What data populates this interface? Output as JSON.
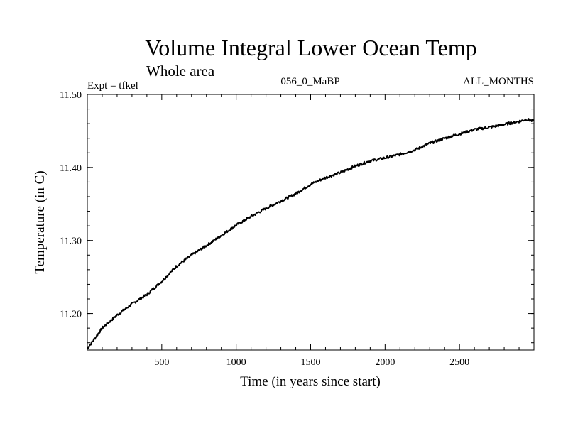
{
  "chart_data": {
    "type": "line",
    "title": "Volume Integral Lower Ocean Temp",
    "subtitle": "Whole area",
    "header_left": "Expt = tfkel",
    "header_center": "056_0_MaBP",
    "header_right": "ALL_MONTHS",
    "xlabel": "Time (in years since start)",
    "ylabel": "Temperature (in C)",
    "xlim": [
      0,
      3000
    ],
    "ylim": [
      11.15,
      11.5
    ],
    "x_ticks": [
      500,
      1000,
      1500,
      2000,
      2500
    ],
    "x_tick_labels": [
      "500",
      "1000",
      "1500",
      "2000",
      "2500"
    ],
    "y_ticks": [
      11.2,
      11.3,
      11.4,
      11.5
    ],
    "y_tick_labels": [
      "11.20",
      "11.30",
      "11.40",
      "11.50"
    ],
    "grid": false,
    "line_color": "#000000",
    "series": [
      {
        "x": [
          0,
          100,
          200,
          300,
          400,
          500,
          600,
          700,
          800,
          900,
          1000,
          1100,
          1200,
          1300,
          1400,
          1500,
          1600,
          1700,
          1800,
          1900,
          2000,
          2100,
          2200,
          2300,
          2400,
          2500,
          2600,
          2700,
          2800,
          2900,
          2950,
          3000
        ],
        "values": [
          11.152,
          11.18,
          11.198,
          11.213,
          11.226,
          11.244,
          11.265,
          11.28,
          11.293,
          11.307,
          11.321,
          11.333,
          11.344,
          11.354,
          11.364,
          11.377,
          11.386,
          11.393,
          11.402,
          11.409,
          11.413,
          11.418,
          11.424,
          11.433,
          11.44,
          11.446,
          11.452,
          11.455,
          11.459,
          11.463,
          11.466,
          11.463
        ]
      }
    ]
  }
}
